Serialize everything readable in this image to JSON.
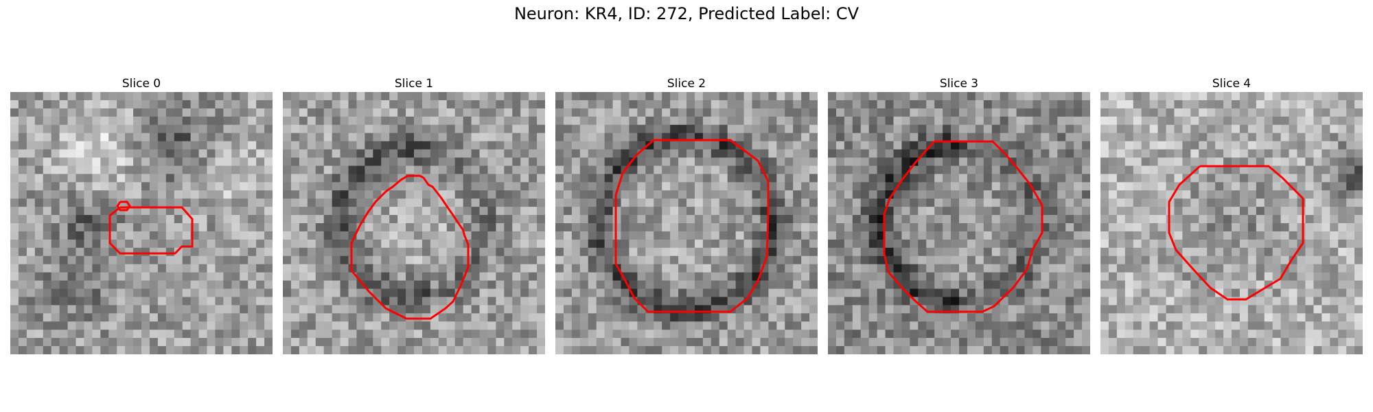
{
  "figure": {
    "title": "Neuron: KR4, ID: 272, Predicted Label: CV"
  },
  "panels": [
    {
      "label": "Slice 0"
    },
    {
      "label": "Slice 1"
    },
    {
      "label": "Slice 2"
    },
    {
      "label": "Slice 3"
    },
    {
      "label": "Slice 4"
    }
  ],
  "colors": {
    "contour": "#ff0000",
    "background": "#ffffff"
  }
}
